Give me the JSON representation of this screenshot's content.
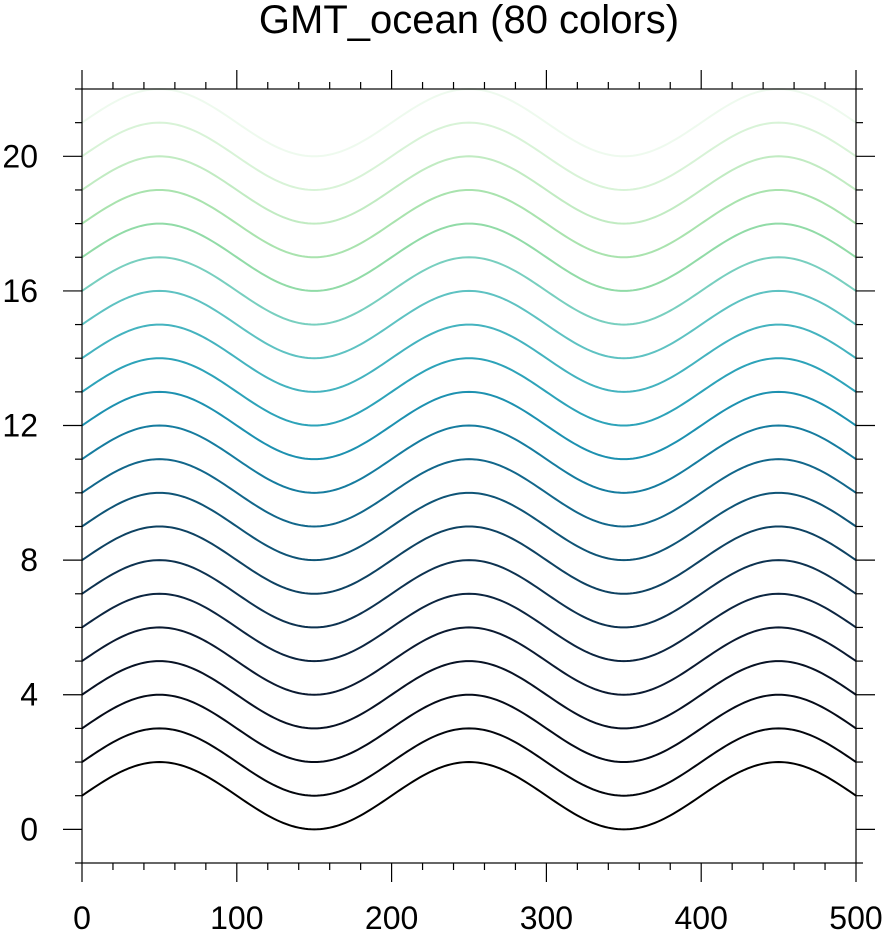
{
  "chart_data": {
    "type": "line",
    "title": "GMT_ocean (80 colors)",
    "xlabel": "",
    "ylabel": "",
    "xlim": [
      0,
      500
    ],
    "ylim": [
      -1,
      22
    ],
    "x_ticks": [
      0,
      100,
      200,
      300,
      400,
      500
    ],
    "y_ticks": [
      0,
      4,
      8,
      12,
      16,
      20
    ],
    "x_minor_step": 20,
    "y_minor_step": 1,
    "grid": false,
    "legend": "none",
    "curve": {
      "function": "y = offset + 1 + sin(2*pi*x/200)",
      "period": 200,
      "amplitude": 1
    },
    "series": [
      {
        "offset": 0,
        "color": "#000000"
      },
      {
        "offset": 1,
        "color": "#03060d"
      },
      {
        "offset": 2,
        "color": "#050b18"
      },
      {
        "offset": 3,
        "color": "#081224"
      },
      {
        "offset": 4,
        "color": "#0b1a31"
      },
      {
        "offset": 5,
        "color": "#0c2540"
      },
      {
        "offset": 6,
        "color": "#0d3250"
      },
      {
        "offset": 7,
        "color": "#0e4262"
      },
      {
        "offset": 8,
        "color": "#0f5476"
      },
      {
        "offset": 9,
        "color": "#12678b"
      },
      {
        "offset": 10,
        "color": "#167c9f"
      },
      {
        "offset": 11,
        "color": "#1d91b0"
      },
      {
        "offset": 12,
        "color": "#2da3b9"
      },
      {
        "offset": 13,
        "color": "#44b3bf"
      },
      {
        "offset": 14,
        "color": "#5ec2c2"
      },
      {
        "offset": 15,
        "color": "#78cfbf"
      },
      {
        "offset": 16,
        "color": "#91dba7"
      },
      {
        "offset": 17,
        "color": "#a9e3ae"
      },
      {
        "offset": 18,
        "color": "#c1ebc2"
      },
      {
        "offset": 19,
        "color": "#d8f3d7"
      },
      {
        "offset": 20,
        "color": "#eefaee"
      }
    ]
  }
}
